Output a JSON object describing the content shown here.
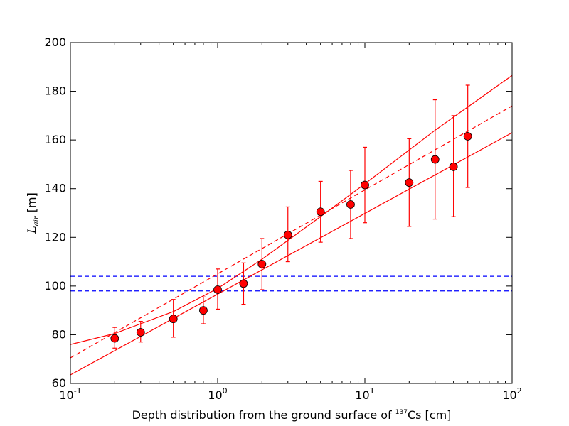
{
  "chart_data": {
    "type": "scatter",
    "title": "",
    "xlabel": {
      "prefix": "Depth distribution from the ground surface of ",
      "superscript": "137",
      "suffix": "Cs [cm]"
    },
    "ylabel": {
      "symbol": "L",
      "subscript": "air",
      "suffix": " [m]"
    },
    "xscale": "log",
    "xlim": [
      0.1,
      100
    ],
    "ylim": [
      60,
      200
    ],
    "grid": false,
    "legend": "none",
    "x_ticks": [
      {
        "base": "10",
        "exp": "-1",
        "value": 0.1
      },
      {
        "base": "10",
        "exp": "0",
        "value": 1
      },
      {
        "base": "10",
        "exp": "1",
        "value": 10
      },
      {
        "base": "10",
        "exp": "2",
        "value": 100
      }
    ],
    "y_ticks": [
      60,
      80,
      100,
      120,
      140,
      160,
      180,
      200
    ],
    "points": [
      {
        "x": 0.2,
        "y": 78.5,
        "yerr_low": 74.5,
        "yerr_high": 83.0
      },
      {
        "x": 0.3,
        "y": 81.0,
        "yerr_low": 77.0,
        "yerr_high": 85.5
      },
      {
        "x": 0.5,
        "y": 86.5,
        "yerr_low": 79.0,
        "yerr_high": 94.5
      },
      {
        "x": 0.8,
        "y": 90.0,
        "yerr_low": 84.5,
        "yerr_high": 95.5
      },
      {
        "x": 1.0,
        "y": 98.5,
        "yerr_low": 90.5,
        "yerr_high": 107.0
      },
      {
        "x": 1.5,
        "y": 101.0,
        "yerr_low": 92.5,
        "yerr_high": 109.5
      },
      {
        "x": 2.0,
        "y": 109.0,
        "yerr_low": 98.5,
        "yerr_high": 119.5
      },
      {
        "x": 3.0,
        "y": 121.0,
        "yerr_low": 110.0,
        "yerr_high": 132.5
      },
      {
        "x": 5.0,
        "y": 130.5,
        "yerr_low": 118.0,
        "yerr_high": 143.0
      },
      {
        "x": 8.0,
        "y": 133.5,
        "yerr_low": 119.5,
        "yerr_high": 147.5
      },
      {
        "x": 10.0,
        "y": 141.5,
        "yerr_low": 126.0,
        "yerr_high": 157.0
      },
      {
        "x": 20.0,
        "y": 142.5,
        "yerr_low": 124.5,
        "yerr_high": 160.5
      },
      {
        "x": 30.0,
        "y": 152.0,
        "yerr_low": 127.5,
        "yerr_high": 176.5
      },
      {
        "x": 40.0,
        "y": 149.0,
        "yerr_low": 128.5,
        "yerr_high": 170.0
      },
      {
        "x": 50.0,
        "y": 161.5,
        "yerr_low": 140.5,
        "yerr_high": 182.5
      }
    ],
    "series": [
      {
        "style": "dashed",
        "color": "#ff0000",
        "x": [
          0.1,
          100
        ],
        "y": [
          70.5,
          174.0
        ]
      },
      {
        "style": "solid",
        "color": "#ff0000",
        "x": [
          0.1,
          0.2,
          0.3,
          0.5,
          1,
          2,
          5,
          10,
          30,
          100
        ],
        "y": [
          76.0,
          80.5,
          84.5,
          89.5,
          99.0,
          111.0,
          128.5,
          142.0,
          164.0,
          186.5
        ]
      },
      {
        "style": "solid",
        "color": "#ff0000",
        "x": [
          0.1,
          100
        ],
        "y": [
          63.5,
          163.0
        ]
      }
    ],
    "hlines": [
      {
        "y": 104.0,
        "style": "dashed",
        "color": "#0000ff"
      },
      {
        "y": 98.0,
        "style": "dashed",
        "color": "#0000ff"
      }
    ],
    "marker_color": "#ff0000",
    "marker_edge": "#000000"
  }
}
